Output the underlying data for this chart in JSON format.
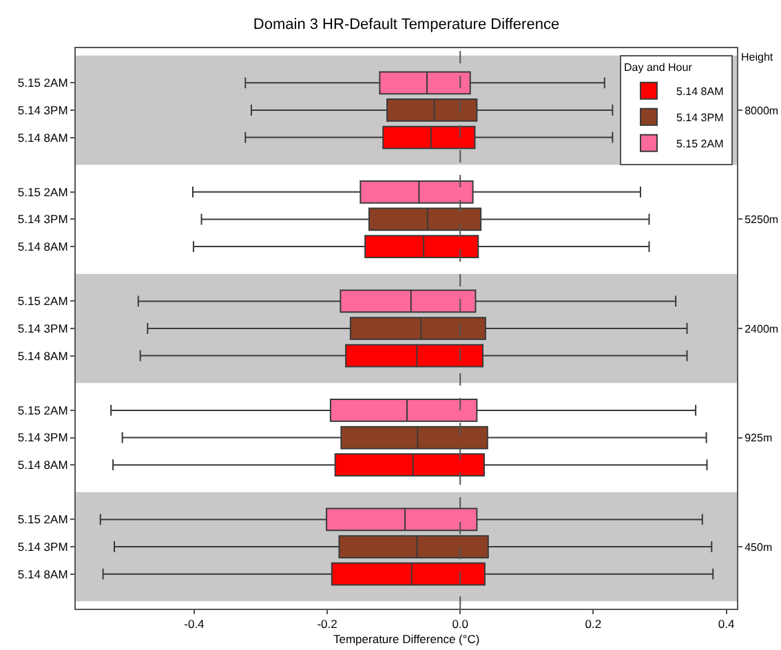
{
  "chart_data": {
    "type": "box",
    "orientation": "horizontal",
    "title": "Domain 3 HR-Default Temperature Difference",
    "xlabel": "Temperature Difference (°C)",
    "ylabel": "Height",
    "legend_title": "Day and Hour",
    "legend": "top right",
    "categories": [
      "8000m",
      "5250m",
      "2400m",
      "925m",
      "450m"
    ],
    "xlim": [
      -0.578,
      0.416
    ],
    "xticks": [
      -0.4,
      -0.2,
      {
        "value": 0,
        "label": "0.0"
      },
      0.2,
      0.4
    ],
    "ref_lines": [
      {
        "axis": "x",
        "value": 0,
        "line_style": "dashed",
        "color": "#555555"
      }
    ],
    "bands": [
      {
        "axis": "y",
        "from": "8000m",
        "to": "8000m",
        "color": "#c8c8c8"
      },
      {
        "axis": "y",
        "from": "2400m",
        "to": "2400m",
        "color": "#c8c8c8"
      },
      {
        "axis": "y",
        "from": "450m",
        "to": "450m",
        "color": "#c8c8c8"
      }
    ],
    "series": [
      {
        "name": "5.14 8AM",
        "color": "#ff0000",
        "boxes": [
          {
            "low": -0.323,
            "q1": -0.116,
            "median": -0.044,
            "q3": 0.022,
            "high": 0.229
          },
          {
            "low": -0.401,
            "q1": -0.143,
            "median": -0.055,
            "q3": 0.027,
            "high": 0.284
          },
          {
            "low": -0.481,
            "q1": -0.172,
            "median": -0.065,
            "q3": 0.034,
            "high": 0.341
          },
          {
            "low": -0.522,
            "q1": -0.188,
            "median": -0.071,
            "q3": 0.036,
            "high": 0.371
          },
          {
            "low": -0.537,
            "q1": -0.193,
            "median": -0.073,
            "q3": 0.037,
            "high": 0.38
          }
        ]
      },
      {
        "name": "5.14 3PM",
        "color": "#8b4024",
        "boxes": [
          {
            "low": -0.314,
            "q1": -0.11,
            "median": -0.039,
            "q3": 0.025,
            "high": 0.229
          },
          {
            "low": -0.389,
            "q1": -0.137,
            "median": -0.049,
            "q3": 0.031,
            "high": 0.284
          },
          {
            "low": -0.47,
            "q1": -0.165,
            "median": -0.059,
            "q3": 0.038,
            "high": 0.341
          },
          {
            "low": -0.508,
            "q1": -0.179,
            "median": -0.064,
            "q3": 0.041,
            "high": 0.37
          },
          {
            "low": -0.52,
            "q1": -0.182,
            "median": -0.065,
            "q3": 0.042,
            "high": 0.378
          }
        ]
      },
      {
        "name": "5.15 2AM",
        "color": "#ff6a9d",
        "boxes": [
          {
            "low": -0.323,
            "q1": -0.121,
            "median": -0.05,
            "q3": 0.015,
            "high": 0.217
          },
          {
            "low": -0.402,
            "q1": -0.15,
            "median": -0.062,
            "q3": 0.019,
            "high": 0.271
          },
          {
            "low": -0.484,
            "q1": -0.18,
            "median": -0.074,
            "q3": 0.023,
            "high": 0.324
          },
          {
            "low": -0.525,
            "q1": -0.195,
            "median": -0.08,
            "q3": 0.025,
            "high": 0.354
          },
          {
            "low": -0.541,
            "q1": -0.201,
            "median": -0.083,
            "q3": 0.025,
            "high": 0.364
          }
        ]
      }
    ]
  }
}
